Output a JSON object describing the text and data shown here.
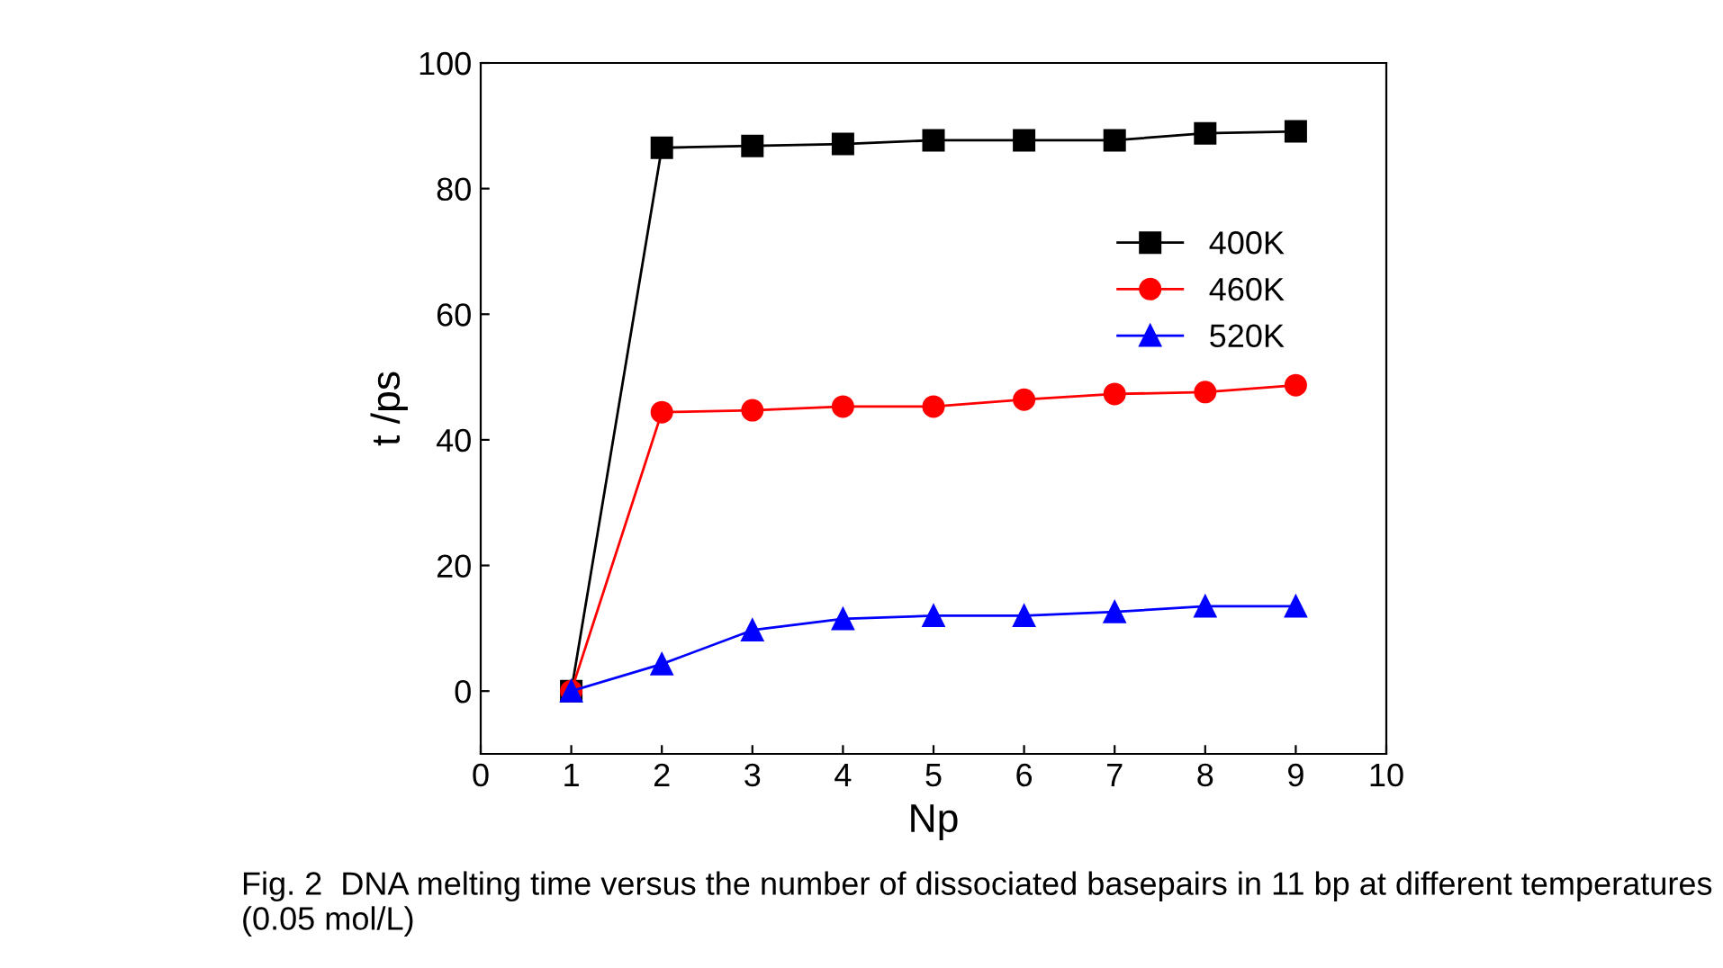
{
  "chart_data": {
    "type": "line",
    "xlabel": "Np",
    "ylabel": "t /ps",
    "x": [
      1,
      2,
      3,
      4,
      5,
      6,
      7,
      8,
      9
    ],
    "series": [
      {
        "name": "400K",
        "color": "#000000",
        "marker": "square",
        "values": [
          0,
          86.5,
          86.8,
          87.1,
          87.7,
          87.7,
          87.7,
          88.8,
          89.1
        ]
      },
      {
        "name": "460K",
        "color": "#ff0000",
        "marker": "circle",
        "values": [
          0,
          44.4,
          44.7,
          45.3,
          45.3,
          46.4,
          47.3,
          47.6,
          48.7
        ]
      },
      {
        "name": "520K",
        "color": "#0000ff",
        "marker": "triangle",
        "values": [
          0,
          4.3,
          9.7,
          11.5,
          12.0,
          12.0,
          12.6,
          13.5,
          13.5
        ]
      }
    ],
    "xlim": [
      0,
      10
    ],
    "xticks": [
      0,
      1,
      2,
      3,
      4,
      5,
      6,
      7,
      8,
      9,
      10
    ],
    "ylim": [
      -10,
      100
    ],
    "yticks": [
      0,
      20,
      40,
      60,
      80,
      100
    ],
    "grid": false,
    "legend": "top right",
    "line_style": "solid",
    "annotations": [
      "Fig. 2  DNA melting time versus the number of dissociated basepairs in 11 bp at different temperatures (0.05 mol/L)"
    ]
  }
}
